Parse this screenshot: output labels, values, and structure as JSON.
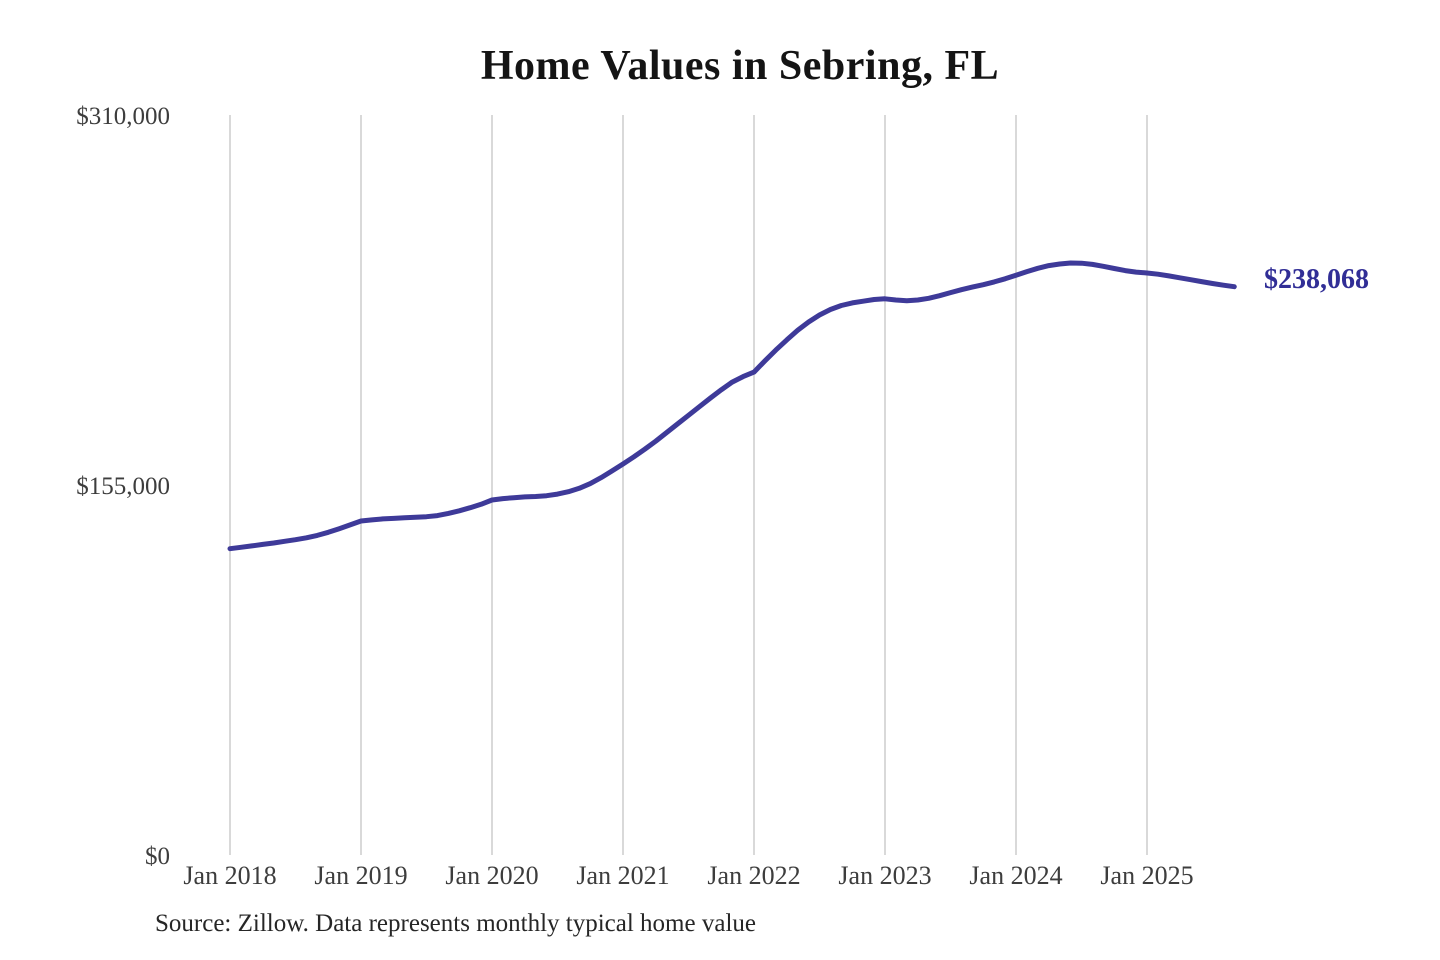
{
  "title": "Home Values in Sebring, FL",
  "source_note": "Source: Zillow. Data represents monthly typical home value",
  "colors": {
    "background": "#ffffff",
    "line": "#3e3a99",
    "end_label": "#312e96",
    "grid": "#c9c9c9",
    "axis_text": "#3d3d3d",
    "title_text": "#141414",
    "source_text": "#262626"
  },
  "chart_data": {
    "type": "line",
    "title": "Home Values in Sebring, FL",
    "xlabel": "",
    "ylabel": "",
    "ylim": [
      0,
      310000
    ],
    "grid": "vertical-only",
    "legend": "none",
    "x_start": "2018-01",
    "x_interval": "month",
    "x_tick_labels": [
      "Jan 2018",
      "Jan 2019",
      "Jan 2020",
      "Jan 2021",
      "Jan 2022",
      "Jan 2023",
      "Jan 2024",
      "Jan 2025"
    ],
    "y_ticks": [
      {
        "value": 0,
        "label": "$0"
      },
      {
        "value": 155000,
        "label": "$155,000"
      },
      {
        "value": 310000,
        "label": "$310,000"
      }
    ],
    "last_value": 238068,
    "last_value_label": "$238,068",
    "series": [
      {
        "name": "Monthly typical home value (USD)",
        "values": [
          128300,
          128900,
          129500,
          130100,
          130700,
          131400,
          132100,
          132900,
          133900,
          135200,
          136700,
          138300,
          139900,
          140400,
          140800,
          141000,
          141300,
          141500,
          141700,
          142200,
          143100,
          144200,
          145500,
          146900,
          148700,
          149300,
          149700,
          150000,
          150200,
          150500,
          151200,
          152200,
          153600,
          155600,
          158100,
          160900,
          163800,
          166800,
          170000,
          173400,
          177000,
          180600,
          184200,
          187800,
          191400,
          194900,
          198100,
          200400,
          202300,
          207000,
          211500,
          215800,
          219800,
          223300,
          226200,
          228500,
          230200,
          231300,
          232000,
          232700,
          233000,
          232500,
          232200,
          232500,
          233200,
          234300,
          235600,
          236800,
          237900,
          238900,
          240100,
          241400,
          242900,
          244400,
          245800,
          246900,
          247600,
          248000,
          247900,
          247400,
          246600,
          245700,
          244800,
          244200,
          243800,
          243300,
          242600,
          241800,
          241000,
          240200,
          239400,
          238700,
          238068
        ]
      }
    ]
  }
}
